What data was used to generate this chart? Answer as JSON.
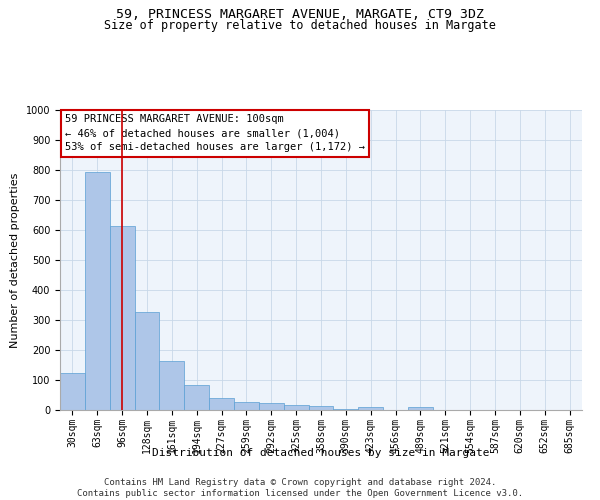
{
  "title": "59, PRINCESS MARGARET AVENUE, MARGATE, CT9 3DZ",
  "subtitle": "Size of property relative to detached houses in Margate",
  "xlabel": "Distribution of detached houses by size in Margate",
  "ylabel": "Number of detached properties",
  "bar_color": "#aec6e8",
  "bar_edge_color": "#5a9fd4",
  "grid_color": "#c8d8e8",
  "bg_color": "#eef4fb",
  "categories": [
    "30sqm",
    "63sqm",
    "96sqm",
    "128sqm",
    "161sqm",
    "194sqm",
    "227sqm",
    "259sqm",
    "292sqm",
    "325sqm",
    "358sqm",
    "390sqm",
    "423sqm",
    "456sqm",
    "489sqm",
    "521sqm",
    "554sqm",
    "587sqm",
    "620sqm",
    "652sqm",
    "685sqm"
  ],
  "values": [
    125,
    795,
    615,
    328,
    162,
    82,
    40,
    27,
    25,
    17,
    15,
    5,
    10,
    0,
    10,
    0,
    0,
    0,
    0,
    0,
    0
  ],
  "vline_x": 2,
  "vline_color": "#cc0000",
  "annotation_box_text": "59 PRINCESS MARGARET AVENUE: 100sqm\n← 46% of detached houses are smaller (1,004)\n53% of semi-detached houses are larger (1,172) →",
  "annotation_box_color": "#cc0000",
  "annotation_box_bg": "#ffffff",
  "footer_text": "Contains HM Land Registry data © Crown copyright and database right 2024.\nContains public sector information licensed under the Open Government Licence v3.0.",
  "ylim": [
    0,
    1000
  ],
  "yticks": [
    0,
    100,
    200,
    300,
    400,
    500,
    600,
    700,
    800,
    900,
    1000
  ],
  "title_fontsize": 9.5,
  "subtitle_fontsize": 8.5,
  "axis_label_fontsize": 8,
  "tick_fontsize": 7,
  "annotation_fontsize": 7.5,
  "footer_fontsize": 6.5
}
